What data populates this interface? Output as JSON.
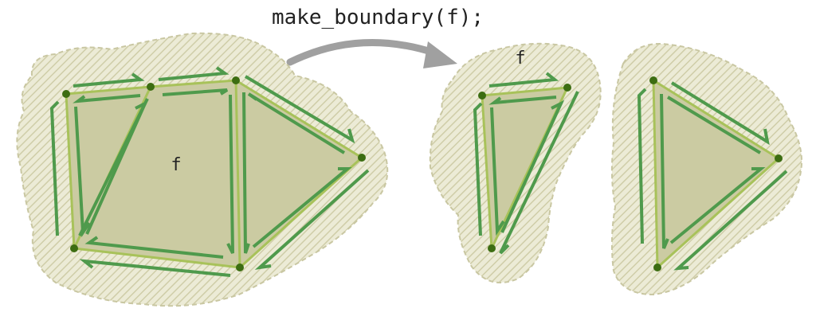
{
  "caption": "make_boundary(f);",
  "face_label_left": "f",
  "face_label_right": "f",
  "colors": {
    "blob_stroke": "#c9c7a2",
    "hatch_bg": "#ecebd6",
    "hatch_line": "#cfcda8",
    "face_fill": "#cbcba2",
    "edge": "#a8c25a",
    "edge_light": "#d4e29a",
    "halfedge": "#4f9a4c",
    "vertex": "#3c6d12",
    "arrow": "#a0a0a0"
  },
  "icons": {
    "operation_arrow": "curved-arrow-icon"
  }
}
